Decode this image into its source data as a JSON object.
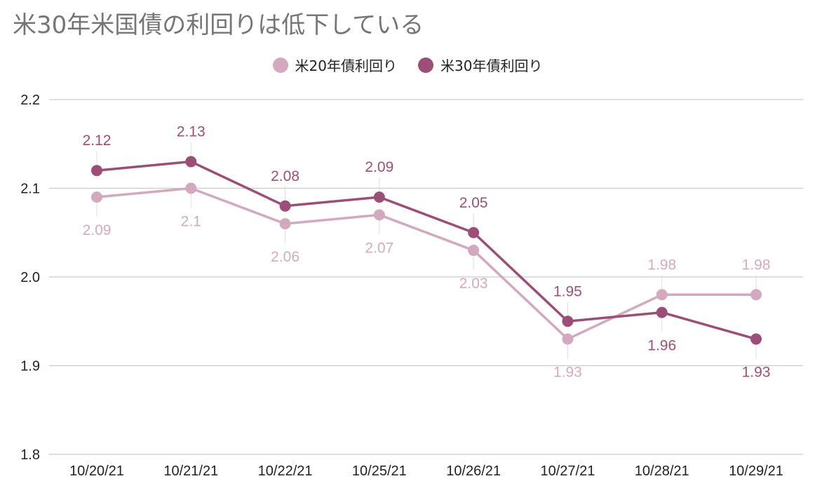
{
  "title": "米30年米国債の利回りは低下している",
  "colors": {
    "series1": "#d2a9bf",
    "series2": "#9b4f76",
    "grid": "#c9c9c9",
    "axis_text": "#222222",
    "title": "#757575",
    "leader": "#dddddd"
  },
  "chart_data": {
    "type": "line",
    "title": "米30年米国債の利回りは低下している",
    "categories": [
      "10/20/21",
      "10/21/21",
      "10/22/21",
      "10/25/21",
      "10/26/21",
      "10/27/21",
      "10/28/21",
      "10/29/21"
    ],
    "series": [
      {
        "name": "米20年債利回り",
        "values": [
          2.09,
          2.1,
          2.06,
          2.07,
          2.03,
          1.93,
          1.98,
          1.98
        ],
        "labels": [
          "2.09",
          "2.1",
          "2.06",
          "2.07",
          "2.03",
          "1.93",
          "1.98",
          "1.98"
        ],
        "label_side": [
          "below",
          "below",
          "below",
          "below",
          "below",
          "below",
          "above",
          "above"
        ]
      },
      {
        "name": "米30年債利回り",
        "values": [
          2.12,
          2.13,
          2.08,
          2.09,
          2.05,
          1.95,
          1.96,
          1.93
        ],
        "labels": [
          "2.12",
          "2.13",
          "2.08",
          "2.09",
          "2.05",
          "1.95",
          "1.96",
          "1.93"
        ],
        "label_side": [
          "above",
          "above",
          "above",
          "above",
          "above",
          "above",
          "below",
          "below"
        ]
      }
    ],
    "ylim": [
      1.8,
      2.2
    ],
    "yticks": [
      "1.8",
      "1.9",
      "2.0",
      "2.1",
      "2.2"
    ],
    "grid": true,
    "legend_position": "top-center"
  }
}
